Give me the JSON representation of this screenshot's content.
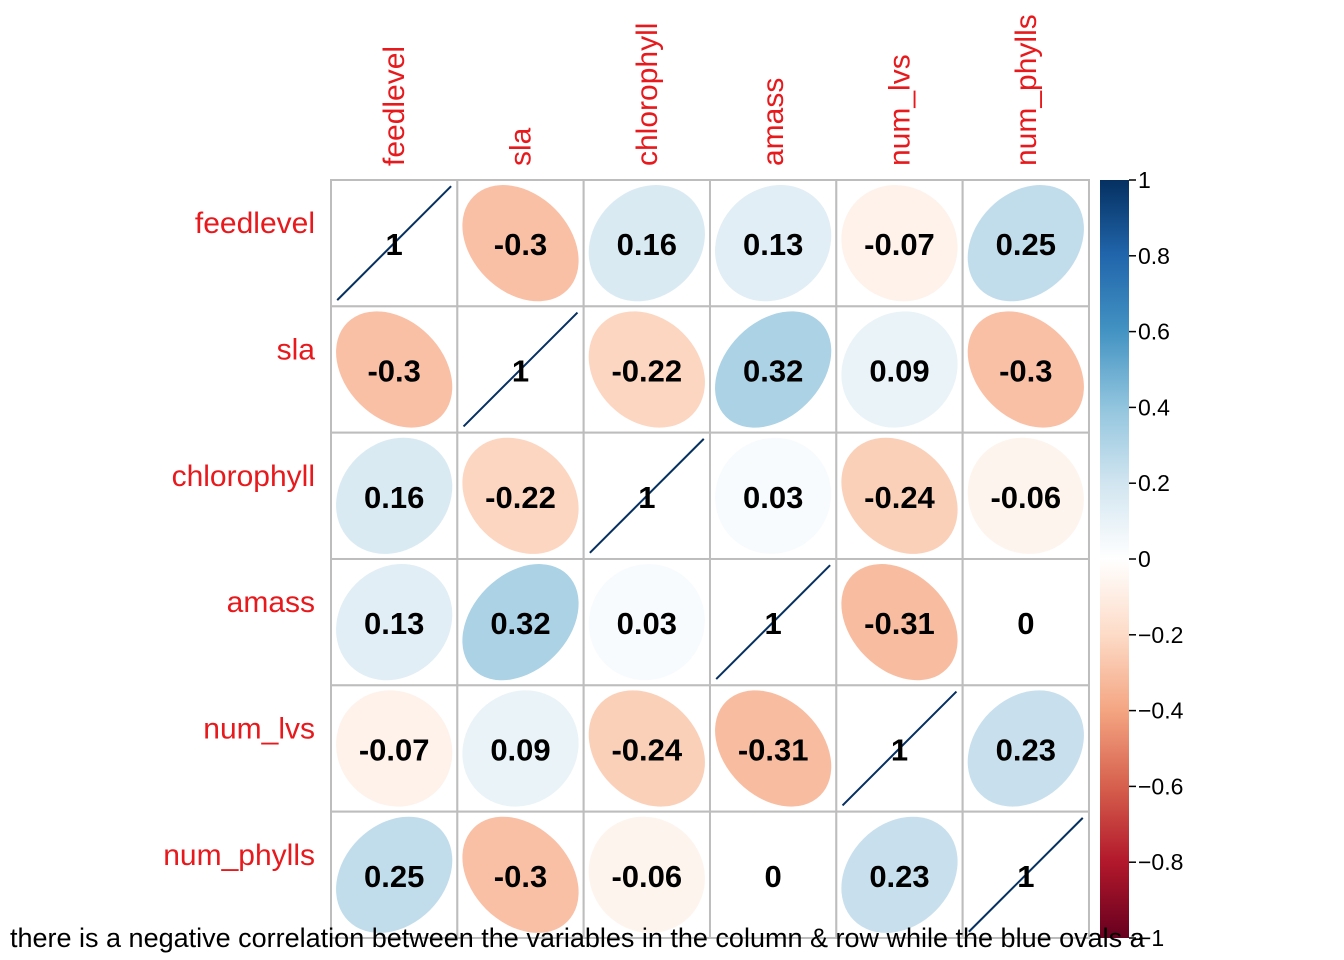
{
  "chart_data": {
    "type": "heatmap",
    "variables": [
      "feedlevel",
      "sla",
      "chlorophyll",
      "amass",
      "num_lvs",
      "num_phylls"
    ],
    "matrix": [
      [
        1,
        -0.3,
        0.16,
        0.13,
        -0.07,
        0.25
      ],
      [
        -0.3,
        1,
        -0.22,
        0.32,
        0.09,
        -0.3
      ],
      [
        0.16,
        -0.22,
        1,
        0.03,
        -0.24,
        -0.06
      ],
      [
        0.13,
        0.32,
        0.03,
        1,
        -0.31,
        0
      ],
      [
        -0.07,
        0.09,
        -0.24,
        -0.31,
        1,
        0.23
      ],
      [
        0.25,
        -0.3,
        -0.06,
        0,
        0.23,
        1
      ]
    ],
    "cell_labels": [
      [
        "1",
        "-0.3",
        "0.16",
        "0.13",
        "-0.07",
        "0.25"
      ],
      [
        "-0.3",
        "1",
        "-0.22",
        "0.32",
        "0.09",
        "-0.3"
      ],
      [
        "0.16",
        "-0.22",
        "1",
        "0.03",
        "-0.24",
        "-0.06"
      ],
      [
        "0.13",
        "0.32",
        "0.03",
        "1",
        "-0.31",
        "0"
      ],
      [
        "-0.07",
        "0.09",
        "-0.24",
        "-0.31",
        "1",
        "0.23"
      ],
      [
        "0.25",
        "-0.3",
        "-0.06",
        "0",
        "0.23",
        "1"
      ]
    ],
    "method": "ellipse",
    "value_range": [
      -1,
      1
    ],
    "colorbar_ticks": [
      1,
      0.8,
      0.6,
      0.4,
      0.2,
      0,
      -0.2,
      -0.4,
      -0.6,
      -0.8,
      -1
    ],
    "colorbar_tick_labels": [
      "1",
      "0.8",
      "0.6",
      "0.4",
      "0.2",
      "0",
      "−0.2",
      "−0.4",
      "−0.6",
      "−0.8",
      "−1"
    ],
    "legend_position": "right",
    "colors": {
      "label": "#e8191c",
      "grid": "#bdbdbd",
      "positive_max": "#053061",
      "negative_max": "#67001f",
      "neutral": "#ffffff",
      "value_text": "#000000"
    }
  },
  "caption": "there is a negative correlation between the variables in the column & row while the blue ovals a"
}
